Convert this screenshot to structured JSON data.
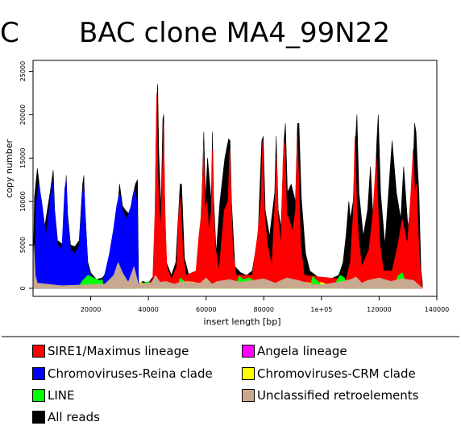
{
  "panel_letter": "C",
  "chart_data": {
    "type": "area",
    "title": "BAC clone MA4_99N22",
    "xlabel": "insert length [bp]",
    "ylabel": "copy number",
    "xlim": [
      0,
      140000
    ],
    "ylim": [
      0,
      25000
    ],
    "x_tick_values": [
      20000,
      40000,
      60000,
      80000,
      100000,
      120000,
      140000
    ],
    "x_tick_labels": [
      "20000",
      "40000",
      "60000",
      "80000",
      "1e+05",
      "120000",
      "140000"
    ],
    "y_tick_values": [
      0,
      5000,
      10000,
      15000,
      20000,
      25000
    ],
    "y_tick_labels": [
      "0",
      "5000",
      "10000",
      "15000",
      "20000",
      "25000"
    ],
    "grid": false,
    "legend_placement": "below",
    "series": [
      {
        "name": "All reads",
        "color": "#000000",
        "x": [
          0,
          500,
          1000,
          1500,
          2500,
          4000,
          6000,
          7000,
          7500,
          8500,
          10500,
          11500,
          12000,
          13000,
          14500,
          16000,
          17200,
          17600,
          18000,
          19000,
          20000,
          22000,
          24000,
          26000,
          28000,
          29000,
          30000,
          31000,
          32000,
          33500,
          34500,
          35500,
          36200,
          36600,
          38000,
          40000,
          42000,
          42800,
          43200,
          43600,
          44400,
          45000,
          45300,
          45600,
          46200,
          48000,
          49500,
          51000,
          51500,
          52500,
          54000,
          56000,
          57500,
          58500,
          59200,
          59800,
          60500,
          61800,
          62200,
          62600,
          63500,
          64800,
          66500,
          67800,
          68300,
          68800,
          70000,
          72000,
          74000,
          76000,
          78000,
          79300,
          79800,
          80500,
          82000,
          83800,
          84300,
          85000,
          86000,
          87000,
          87500,
          88200,
          89500,
          91000,
          91700,
          92200,
          93000,
          94500,
          96000,
          98000,
          100000,
          102000,
          104000,
          106000,
          107500,
          108500,
          109500,
          110000,
          111000,
          111800,
          112300,
          113000,
          114500,
          116000,
          117000,
          118000,
          119200,
          119700,
          120500,
          122000,
          124500,
          126000,
          127500,
          128500,
          130000,
          131500,
          132300,
          132800,
          133300,
          133800,
          134500,
          135000
        ],
        "y": [
          1000,
          10500,
          12200,
          13800,
          11000,
          7000,
          11200,
          13600,
          9000,
          5500,
          5000,
          13000,
          8500,
          5000,
          4800,
          5500,
          12000,
          13000,
          9000,
          3000,
          1800,
          1000,
          1200,
          2000,
          5000,
          8000,
          12000,
          9500,
          9000,
          8500,
          10500,
          12000,
          12500,
          500,
          800,
          600,
          1500,
          20500,
          23500,
          15500,
          9000,
          19500,
          20000,
          11000,
          3000,
          1500,
          3000,
          12000,
          12000,
          3500,
          1500,
          1000,
          3000,
          10000,
          18000,
          10000,
          15000,
          10000,
          18000,
          10500,
          4000,
          10000,
          15000,
          17200,
          17000,
          10000,
          2500,
          1800,
          1500,
          2000,
          6000,
          17000,
          17500,
          9000,
          6000,
          11000,
          17500,
          9000,
          7000,
          17000,
          19000,
          11000,
          12000,
          10000,
          19000,
          19000,
          10500,
          4000,
          2000,
          1500,
          1000,
          1000,
          1200,
          1500,
          3000,
          6000,
          10000,
          8000,
          10000,
          17000,
          20000,
          11000,
          6000,
          9000,
          14000,
          7000,
          17000,
          20000,
          11000,
          5000,
          17000,
          11000,
          8000,
          14000,
          7000,
          11000,
          19000,
          18000,
          14000,
          11000,
          2000,
          600
        ]
      },
      {
        "name": "SIRE1/Maximus lineage",
        "color": "#ff0000",
        "x": [
          38000,
          41500,
          42300,
          42900,
          43300,
          43700,
          44300,
          44900,
          45300,
          45700,
          46400,
          48000,
          49800,
          50500,
          51000,
          51400,
          52000,
          53000,
          56500,
          57500,
          58500,
          59100,
          59600,
          60300,
          61000,
          61800,
          62200,
          62600,
          63300,
          64500,
          66300,
          67600,
          68200,
          68700,
          69300,
          70500,
          76000,
          77800,
          79000,
          79600,
          80300,
          81300,
          82800,
          83800,
          84400,
          85000,
          86000,
          86700,
          87300,
          88000,
          88800,
          90000,
          91000,
          91600,
          92100,
          92800,
          94000,
          108500,
          110000,
          111000,
          111600,
          112200,
          112900,
          114000,
          116500,
          117800,
          119000,
          119600,
          120300,
          121500,
          124500,
          126500,
          128000,
          129800,
          131000,
          131800,
          132400,
          133000,
          133600,
          134300,
          135000
        ],
        "y": [
          0,
          1000,
          9000,
          22500,
          13000,
          9500,
          7000,
          14000,
          19000,
          9000,
          2500,
          1000,
          2500,
          8500,
          10500,
          8500,
          4000,
          1500,
          2000,
          6000,
          9000,
          16500,
          9000,
          10000,
          6500,
          9000,
          16000,
          9000,
          4500,
          2000,
          9000,
          10000,
          16000,
          10000,
          4000,
          1500,
          1500,
          6000,
          10000,
          17000,
          8500,
          5000,
          2500,
          9500,
          15000,
          8000,
          5000,
          15000,
          17000,
          8500,
          8000,
          6500,
          9000,
          17500,
          13000,
          5000,
          1500,
          1000,
          3000,
          8500,
          17500,
          10000,
          5500,
          2500,
          4500,
          8500,
          15000,
          9500,
          5000,
          2000,
          2000,
          5000,
          8000,
          5000,
          11000,
          16000,
          11000,
          12000,
          6000,
          2000,
          0
        ]
      },
      {
        "name": "Chromoviruses-Reina clade",
        "color": "#0000ff",
        "x": [
          500,
          1000,
          1500,
          2000,
          3000,
          4500,
          6000,
          7000,
          7500,
          8500,
          10000,
          11000,
          11500,
          12000,
          13000,
          14500,
          16000,
          17200,
          17600,
          18200,
          19000,
          20000,
          21500,
          23000,
          24000,
          25000,
          26500,
          28000,
          29000,
          30000,
          31000,
          32500,
          34000,
          35000,
          35500,
          36200,
          36600
        ],
        "y": [
          500,
          9500,
          11000,
          12000,
          10000,
          6000,
          10500,
          12500,
          8500,
          5000,
          4500,
          11500,
          12500,
          8000,
          4500,
          4000,
          5000,
          11000,
          12000,
          8000,
          2500,
          1500,
          800,
          600,
          700,
          1800,
          4000,
          7000,
          9500,
          11000,
          9000,
          8000,
          9500,
          11000,
          11500,
          9000,
          0
        ]
      },
      {
        "name": "Chromoviruses-CRM clade",
        "color": "#ffff00",
        "x": [
          36600,
          37200,
          39000,
          41000,
          42200,
          42300,
          52000,
          53000,
          56000,
          57000,
          58000,
          93000,
          94500,
          96000,
          98000,
          100000,
          102000,
          104000,
          105000,
          106000
        ],
        "y": [
          0,
          700,
          500,
          600,
          400,
          0,
          0,
          800,
          700,
          500,
          0,
          0,
          700,
          600,
          500,
          700,
          400,
          600,
          500,
          0
        ]
      },
      {
        "name": "LINE",
        "color": "#00ff00",
        "x": [
          15500,
          17000,
          19000,
          21000,
          23000,
          24000,
          24500,
          37000,
          38500,
          40000,
          42000,
          50000,
          51000,
          52500,
          53000,
          70000,
          71500,
          73000,
          75000,
          76500,
          77000,
          96000,
          97000,
          98000,
          99500,
          100000,
          104000,
          105500,
          106500,
          108000,
          109000,
          125000,
          126500,
          128000,
          130000
        ],
        "y": [
          0,
          800,
          1500,
          1200,
          900,
          1000,
          0,
          0,
          600,
          800,
          0,
          0,
          1200,
          800,
          0,
          0,
          1400,
          1000,
          1200,
          900,
          0,
          0,
          1400,
          1000,
          600,
          0,
          0,
          1000,
          1500,
          1200,
          0,
          0,
          1400,
          1800,
          0
        ]
      },
      {
        "name": "Unclassified retroelements",
        "color": "#c8a88e",
        "x": [
          0,
          300,
          800,
          1500,
          10000,
          25000,
          28000,
          29500,
          31000,
          33000,
          35000,
          36500,
          41000,
          42500,
          44000,
          46000,
          49000,
          52000,
          58000,
          60000,
          62000,
          64000,
          68000,
          72000,
          76000,
          80000,
          84000,
          88000,
          92000,
          96000,
          100000,
          106000,
          110000,
          112000,
          114000,
          116000,
          120000,
          124000,
          128000,
          132000,
          135000
        ],
        "y": [
          0,
          5000,
          1500,
          600,
          300,
          500,
          1500,
          3000,
          1800,
          700,
          2500,
          500,
          600,
          1500,
          700,
          800,
          500,
          800,
          600,
          1200,
          500,
          800,
          1000,
          700,
          900,
          1100,
          600,
          1200,
          900,
          500,
          400,
          700,
          1000,
          1300,
          600,
          900,
          1200,
          800,
          1100,
          900,
          0
        ]
      },
      {
        "name": "Angela lineage",
        "color": "#ff00ff",
        "x": [],
        "y": []
      }
    ]
  },
  "legend": {
    "items": [
      {
        "label": "SIRE1/Maximus lineage",
        "color": "#ff0000"
      },
      {
        "label": "Angela lineage",
        "color": "#ff00ff"
      },
      {
        "label": "Chromoviruses-Reina clade",
        "color": "#0000ff"
      },
      {
        "label": "Chromoviruses-CRM clade",
        "color": "#ffff00"
      },
      {
        "label": "LINE",
        "color": "#00ff00"
      },
      {
        "label": "Unclassified retroelements",
        "color": "#c8a88e"
      },
      {
        "label": "All reads",
        "color": "#000000"
      }
    ]
  }
}
